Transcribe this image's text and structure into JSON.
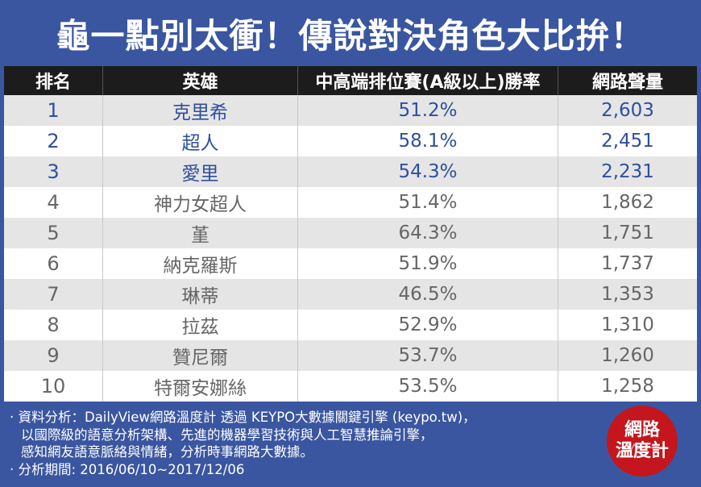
{
  "title": "龜一點別太衝！傳說對決角色大比拚！",
  "headers": [
    "排名",
    "英雄",
    "中高端排位賽(A級以上)勝率",
    "網路聲量"
  ],
  "rows": [
    {
      "rank": "1",
      "hero": "克里希",
      "winrate": "51.2%",
      "volume": "2,603"
    },
    {
      "rank": "2",
      "hero": "超人",
      "winrate": "58.1%",
      "volume": "2,451"
    },
    {
      "rank": "3",
      "hero": "愛里",
      "winrate": "54.3%",
      "volume": "2,231"
    },
    {
      "rank": "4",
      "hero": "神力女超人",
      "winrate": "51.4%",
      "volume": "1,862"
    },
    {
      "rank": "5",
      "hero": "堇",
      "winrate": "64.3%",
      "volume": "1,751"
    },
    {
      "rank": "6",
      "hero": "納克羅斯",
      "winrate": "51.9%",
      "volume": "1,737"
    },
    {
      "rank": "7",
      "hero": "琳蒂",
      "winrate": "46.5%",
      "volume": "1,353"
    },
    {
      "rank": "8",
      "hero": "拉茲",
      "winrate": "52.9%",
      "volume": "1,310"
    },
    {
      "rank": "9",
      "hero": "贊尼爾",
      "winrate": "53.7%",
      "volume": "1,260"
    },
    {
      "rank": "10",
      "hero": "特爾安娜絲",
      "winrate": "53.5%",
      "volume": "1,258"
    }
  ],
  "footer": {
    "line1": "· 資料分析：DailyView網路溫度計 透過 KEYPO大數據關鍵引擎 (keypo.tw)，",
    "line2": "以國際級的語意分析架構、先進的機器學習技術與人工智慧推論引擎，",
    "line3": "感知網友語意脈絡與情緒，分析時事網路大數據。",
    "line4": "· 分析期間: 2016/06/10~2017/12/06"
  },
  "badge": {
    "line1": "網路",
    "line2": "溫度計"
  },
  "colors": {
    "frame": "#3a56a0",
    "header_bg": "#1c1c1c",
    "top_text": "#2e4f9f",
    "rest_text": "#666666",
    "badge": "#c4161c"
  }
}
